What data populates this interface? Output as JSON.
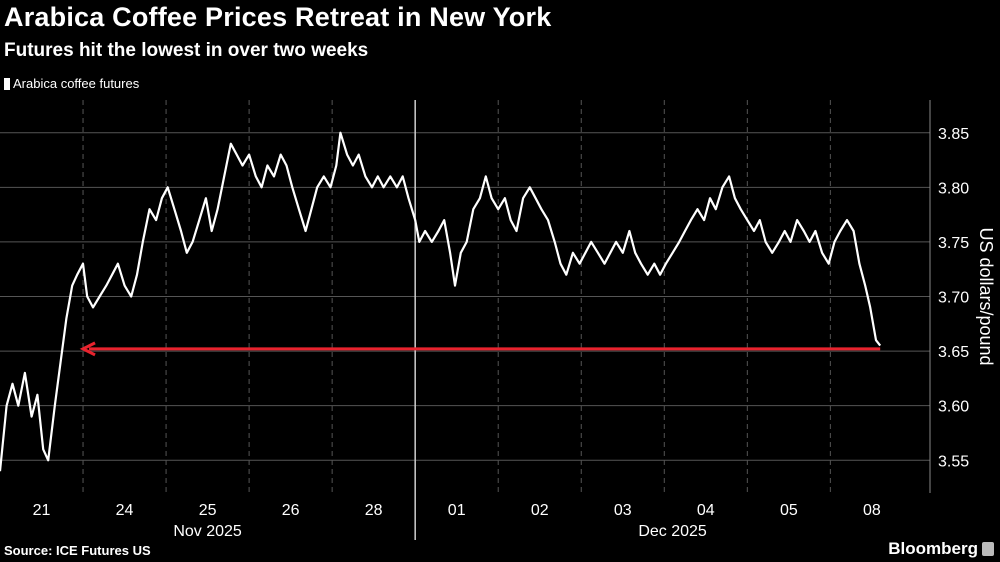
{
  "header": {
    "title": "Arabica Coffee Prices Retreat in New York",
    "subtitle": "Futures hit the lowest in over two weeks"
  },
  "footer": {
    "source": "Source: ICE Futures US",
    "brand": "Bloomberg"
  },
  "colors": {
    "background": "#000000",
    "line": "#ffffff",
    "annotation": "#e8232e",
    "grid": "#555555"
  },
  "chart_data": {
    "type": "line",
    "title": "Arabica Coffee Prices Retreat in New York",
    "subtitle": "Futures hit the lowest in over two weeks",
    "ylabel": "US dollars/pound",
    "xlabel": "",
    "ylim": [
      3.52,
      3.88
    ],
    "yticks": [
      3.55,
      3.6,
      3.65,
      3.7,
      3.75,
      3.8,
      3.85
    ],
    "ytick_labels": [
      "3.55",
      "3.60",
      "3.65",
      "3.70",
      "3.75",
      "3.80",
      "3.85"
    ],
    "xlim": [
      0,
      11.2
    ],
    "x_ticks": [
      {
        "pos": 0.5,
        "label": "21"
      },
      {
        "pos": 1.5,
        "label": "24"
      },
      {
        "pos": 2.5,
        "label": "25"
      },
      {
        "pos": 3.5,
        "label": "26"
      },
      {
        "pos": 4.5,
        "label": "28"
      },
      {
        "pos": 5.5,
        "label": "01"
      },
      {
        "pos": 6.5,
        "label": "02"
      },
      {
        "pos": 7.5,
        "label": "03"
      },
      {
        "pos": 8.5,
        "label": "04"
      },
      {
        "pos": 9.5,
        "label": "05"
      },
      {
        "pos": 10.5,
        "label": "08"
      }
    ],
    "gridlines_x": [
      1,
      2,
      3,
      4,
      6,
      7,
      8,
      9,
      10
    ],
    "month_divider_x": 5,
    "month_labels": [
      {
        "pos": 2.5,
        "label": "Nov 2025"
      },
      {
        "pos": 8.1,
        "label": "Dec 2025"
      }
    ],
    "legend": [
      "Arabica coffee futures"
    ],
    "legend_position": "top-left",
    "series": [
      {
        "name": "Arabica coffee futures",
        "points": [
          [
            0.0,
            3.54
          ],
          [
            0.08,
            3.6
          ],
          [
            0.15,
            3.62
          ],
          [
            0.22,
            3.6
          ],
          [
            0.3,
            3.63
          ],
          [
            0.38,
            3.59
          ],
          [
            0.45,
            3.61
          ],
          [
            0.52,
            3.56
          ],
          [
            0.58,
            3.55
          ],
          [
            0.66,
            3.6
          ],
          [
            0.73,
            3.64
          ],
          [
            0.8,
            3.68
          ],
          [
            0.87,
            3.71
          ],
          [
            0.93,
            3.72
          ],
          [
            1.0,
            3.73
          ],
          [
            1.05,
            3.7
          ],
          [
            1.12,
            3.69
          ],
          [
            1.2,
            3.7
          ],
          [
            1.28,
            3.71
          ],
          [
            1.35,
            3.72
          ],
          [
            1.42,
            3.73
          ],
          [
            1.5,
            3.71
          ],
          [
            1.58,
            3.7
          ],
          [
            1.65,
            3.72
          ],
          [
            1.72,
            3.75
          ],
          [
            1.8,
            3.78
          ],
          [
            1.88,
            3.77
          ],
          [
            1.95,
            3.79
          ],
          [
            2.02,
            3.8
          ],
          [
            2.1,
            3.78
          ],
          [
            2.18,
            3.76
          ],
          [
            2.25,
            3.74
          ],
          [
            2.32,
            3.75
          ],
          [
            2.4,
            3.77
          ],
          [
            2.48,
            3.79
          ],
          [
            2.55,
            3.76
          ],
          [
            2.62,
            3.78
          ],
          [
            2.7,
            3.81
          ],
          [
            2.78,
            3.84
          ],
          [
            2.85,
            3.83
          ],
          [
            2.92,
            3.82
          ],
          [
            3.0,
            3.83
          ],
          [
            3.08,
            3.81
          ],
          [
            3.15,
            3.8
          ],
          [
            3.22,
            3.82
          ],
          [
            3.3,
            3.81
          ],
          [
            3.38,
            3.83
          ],
          [
            3.45,
            3.82
          ],
          [
            3.52,
            3.8
          ],
          [
            3.6,
            3.78
          ],
          [
            3.68,
            3.76
          ],
          [
            3.75,
            3.78
          ],
          [
            3.82,
            3.8
          ],
          [
            3.9,
            3.81
          ],
          [
            3.98,
            3.8
          ],
          [
            4.05,
            3.82
          ],
          [
            4.1,
            3.85
          ],
          [
            4.18,
            3.83
          ],
          [
            4.25,
            3.82
          ],
          [
            4.32,
            3.83
          ],
          [
            4.4,
            3.81
          ],
          [
            4.48,
            3.8
          ],
          [
            4.55,
            3.81
          ],
          [
            4.62,
            3.8
          ],
          [
            4.7,
            3.81
          ],
          [
            4.78,
            3.8
          ],
          [
            4.85,
            3.81
          ],
          [
            4.92,
            3.79
          ],
          [
            5.0,
            3.77
          ],
          [
            5.05,
            3.75
          ],
          [
            5.12,
            3.76
          ],
          [
            5.2,
            3.75
          ],
          [
            5.28,
            3.76
          ],
          [
            5.35,
            3.77
          ],
          [
            5.42,
            3.74
          ],
          [
            5.48,
            3.71
          ],
          [
            5.55,
            3.74
          ],
          [
            5.62,
            3.75
          ],
          [
            5.7,
            3.78
          ],
          [
            5.78,
            3.79
          ],
          [
            5.85,
            3.81
          ],
          [
            5.92,
            3.79
          ],
          [
            6.0,
            3.78
          ],
          [
            6.08,
            3.79
          ],
          [
            6.15,
            3.77
          ],
          [
            6.22,
            3.76
          ],
          [
            6.3,
            3.79
          ],
          [
            6.38,
            3.8
          ],
          [
            6.45,
            3.79
          ],
          [
            6.52,
            3.78
          ],
          [
            6.6,
            3.77
          ],
          [
            6.68,
            3.75
          ],
          [
            6.75,
            3.73
          ],
          [
            6.82,
            3.72
          ],
          [
            6.9,
            3.74
          ],
          [
            6.98,
            3.73
          ],
          [
            7.05,
            3.74
          ],
          [
            7.12,
            3.75
          ],
          [
            7.2,
            3.74
          ],
          [
            7.28,
            3.73
          ],
          [
            7.35,
            3.74
          ],
          [
            7.42,
            3.75
          ],
          [
            7.5,
            3.74
          ],
          [
            7.58,
            3.76
          ],
          [
            7.65,
            3.74
          ],
          [
            7.72,
            3.73
          ],
          [
            7.8,
            3.72
          ],
          [
            7.88,
            3.73
          ],
          [
            7.95,
            3.72
          ],
          [
            8.02,
            3.73
          ],
          [
            8.1,
            3.74
          ],
          [
            8.18,
            3.75
          ],
          [
            8.25,
            3.76
          ],
          [
            8.32,
            3.77
          ],
          [
            8.4,
            3.78
          ],
          [
            8.48,
            3.77
          ],
          [
            8.55,
            3.79
          ],
          [
            8.62,
            3.78
          ],
          [
            8.7,
            3.8
          ],
          [
            8.78,
            3.81
          ],
          [
            8.85,
            3.79
          ],
          [
            8.92,
            3.78
          ],
          [
            9.0,
            3.77
          ],
          [
            9.08,
            3.76
          ],
          [
            9.15,
            3.77
          ],
          [
            9.22,
            3.75
          ],
          [
            9.3,
            3.74
          ],
          [
            9.38,
            3.75
          ],
          [
            9.45,
            3.76
          ],
          [
            9.52,
            3.75
          ],
          [
            9.6,
            3.77
          ],
          [
            9.68,
            3.76
          ],
          [
            9.75,
            3.75
          ],
          [
            9.82,
            3.76
          ],
          [
            9.9,
            3.74
          ],
          [
            9.98,
            3.73
          ],
          [
            10.05,
            3.75
          ],
          [
            10.12,
            3.76
          ],
          [
            10.2,
            3.77
          ],
          [
            10.28,
            3.76
          ],
          [
            10.35,
            3.73
          ],
          [
            10.42,
            3.71
          ],
          [
            10.48,
            3.69
          ],
          [
            10.55,
            3.66
          ],
          [
            10.6,
            3.655
          ]
        ]
      }
    ],
    "annotations": [
      {
        "type": "arrow",
        "label": "",
        "value": 3.652,
        "from_x": 10.6,
        "to_x": 1.0
      }
    ]
  }
}
